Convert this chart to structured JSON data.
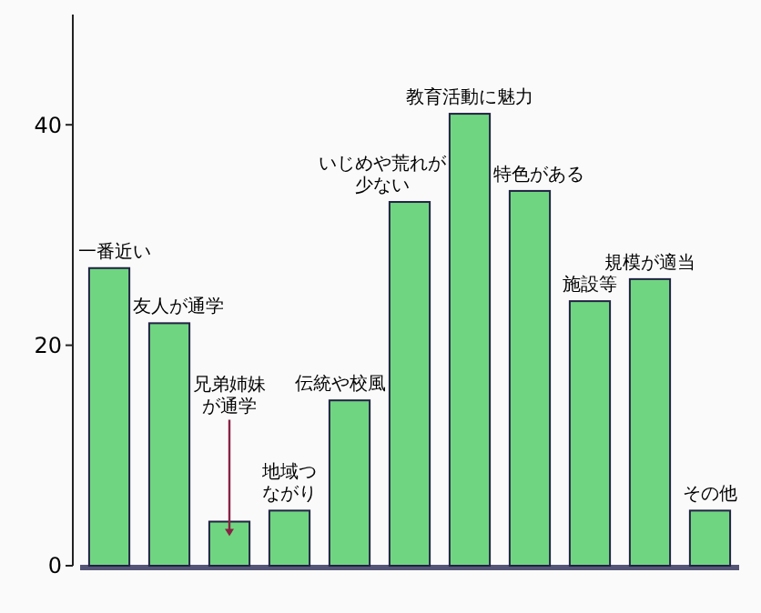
{
  "chart_data": {
    "type": "bar",
    "categories": [
      "一番近い",
      "友人が通学",
      "兄弟姉妹が通学",
      "地域つながり",
      "伝統や校風",
      "いじめや荒れが少ない",
      "教育活動に魅力",
      "特色がある",
      "施設等",
      "規模が適当",
      "その他"
    ],
    "values": [
      27,
      22,
      4,
      5,
      15,
      33,
      41,
      34,
      24,
      26,
      5
    ],
    "color": "#70d581",
    "ylim": [
      0,
      50
    ],
    "yticks": [
      0,
      20,
      40
    ],
    "data_labels": false,
    "grid": false
  }
}
